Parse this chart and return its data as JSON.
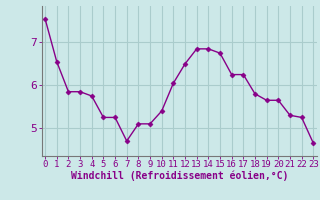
{
  "x": [
    0,
    1,
    2,
    3,
    4,
    5,
    6,
    7,
    8,
    9,
    10,
    11,
    12,
    13,
    14,
    15,
    16,
    17,
    18,
    19,
    20,
    21,
    22,
    23
  ],
  "y": [
    7.55,
    6.55,
    5.85,
    5.85,
    5.75,
    5.25,
    5.25,
    4.7,
    5.1,
    5.1,
    5.4,
    6.05,
    6.5,
    6.85,
    6.85,
    6.75,
    6.25,
    6.25,
    5.8,
    5.65,
    5.65,
    5.3,
    5.25,
    4.65
  ],
  "line_color": "#880088",
  "marker": "D",
  "marker_size": 2.5,
  "bg_color": "#cce8e8",
  "grid_color": "#aacccc",
  "xlabel": "Windchill (Refroidissement éolien,°C)",
  "yticks": [
    5,
    6,
    7
  ],
  "xticks": [
    0,
    1,
    2,
    3,
    4,
    5,
    6,
    7,
    8,
    9,
    10,
    11,
    12,
    13,
    14,
    15,
    16,
    17,
    18,
    19,
    20,
    21,
    22,
    23
  ],
  "xlim": [
    -0.3,
    23.3
  ],
  "ylim": [
    4.35,
    7.85
  ],
  "xlabel_fontsize": 7,
  "tick_fontsize": 6.5,
  "ytick_fontsize": 8
}
